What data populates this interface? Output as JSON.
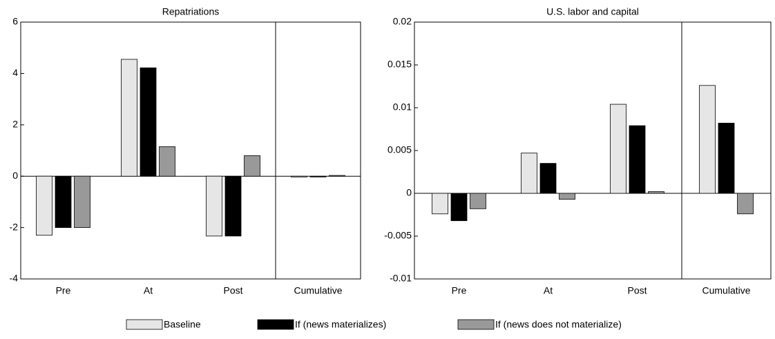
{
  "chart_data": [
    {
      "type": "bar",
      "title": "Repatriations",
      "categories": [
        "Pre",
        "At",
        "Post",
        "Cumulative"
      ],
      "series": [
        {
          "name": "Baseline",
          "color": "#e6e6e6",
          "values": [
            -2.3,
            4.55,
            -2.33,
            -0.03
          ]
        },
        {
          "name": "If (news materializes)",
          "color": "#000000",
          "values": [
            -2.0,
            4.22,
            -2.33,
            -0.03
          ]
        },
        {
          "name": "If (news does not materialize)",
          "color": "#999999",
          "values": [
            -2.0,
            1.15,
            0.8,
            0.03
          ]
        }
      ],
      "ylim": [
        -4,
        6
      ],
      "yticks": [
        -4,
        -2,
        0,
        2,
        4,
        6
      ]
    },
    {
      "type": "bar",
      "title": "U.S. labor and capital",
      "categories": [
        "Pre",
        "At",
        "Post",
        "Cumulative"
      ],
      "series": [
        {
          "color": "#e6e6e6",
          "values": [
            -0.0024,
            0.0047,
            0.0104,
            0.0126
          ]
        },
        {
          "color": "#000000",
          "values": [
            -0.0032,
            0.0035,
            0.0079,
            0.0082
          ]
        },
        {
          "color": "#999999",
          "values": [
            -0.0018,
            -0.0007,
            0.0002,
            -0.0024
          ]
        }
      ],
      "ylim": [
        -0.01,
        0.02
      ],
      "yticks": [
        -0.01,
        -0.005,
        0,
        0.005,
        0.01,
        0.015,
        0.02
      ]
    }
  ]
}
